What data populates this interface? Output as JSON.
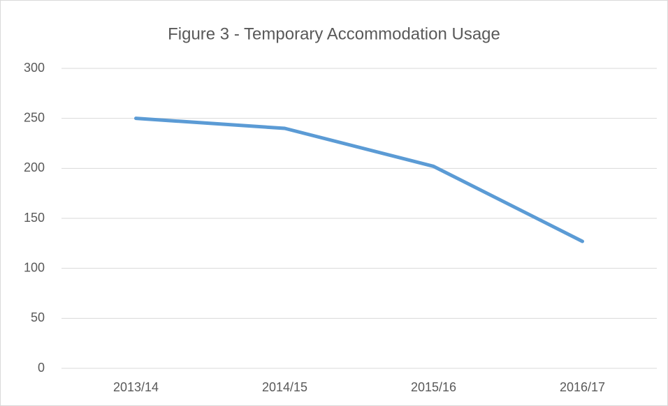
{
  "chart_data": {
    "type": "line",
    "title": "Figure 3 - Temporary Accommodation Usage",
    "categories": [
      "2013/14",
      "2014/15",
      "2015/16",
      "2016/17"
    ],
    "values": [
      250,
      240,
      202,
      127
    ],
    "color": "#5b9bd5",
    "ylim": [
      0,
      300
    ],
    "yticks": [
      0,
      50,
      100,
      150,
      200,
      250,
      300
    ],
    "grid": true
  }
}
